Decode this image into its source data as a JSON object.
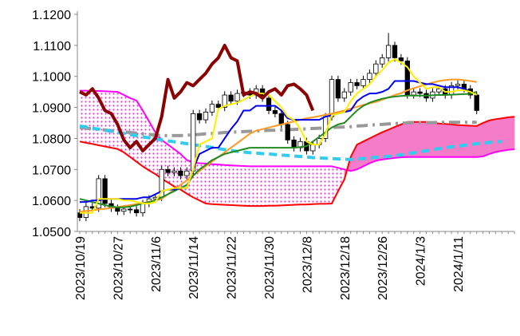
{
  "chart_data": {
    "type": "candlestick",
    "ylim": [
      1.05,
      1.12
    ],
    "yticks": [
      {
        "value": 1.05,
        "label": "1.0500"
      },
      {
        "value": 1.06,
        "label": "1.0600"
      },
      {
        "value": 1.07,
        "label": "1.0700"
      },
      {
        "value": 1.08,
        "label": "1.0800"
      },
      {
        "value": 1.09,
        "label": "1.0900"
      },
      {
        "value": 1.1,
        "label": "1.1000"
      },
      {
        "value": 1.11,
        "label": "1.1100"
      },
      {
        "value": 1.12,
        "label": "1.1200"
      }
    ],
    "categories": [
      "2023/10/19",
      null,
      null,
      null,
      null,
      null,
      "2023/10/27",
      null,
      null,
      null,
      null,
      null,
      "2023/11/6",
      null,
      null,
      null,
      null,
      null,
      "2023/11/14",
      null,
      null,
      null,
      null,
      null,
      "2023/11/22",
      null,
      null,
      null,
      null,
      null,
      "2023/11/30",
      null,
      null,
      null,
      null,
      null,
      "2023/12/8",
      null,
      null,
      null,
      null,
      null,
      "2023/12/18",
      null,
      null,
      null,
      null,
      null,
      "2023/12/26",
      null,
      null,
      null,
      null,
      null,
      "2024/1/3",
      null,
      null,
      null,
      null,
      null,
      "2024/1/11",
      null,
      null,
      null,
      null,
      null,
      null,
      null,
      null,
      null
    ],
    "candles": {
      "up_color": "#ffffff",
      "down_color": "#000000",
      "open": [
        1.056,
        1.0545,
        1.058,
        1.0575,
        1.067,
        1.059,
        1.0575,
        1.0565,
        1.0572,
        1.057,
        1.056,
        1.059,
        1.0605,
        1.061,
        1.07,
        1.069,
        1.0695,
        1.068,
        1.0695,
        1.088,
        1.086,
        1.0885,
        1.091,
        1.09,
        1.094,
        1.092,
        1.0945,
        1.095,
        1.094,
        1.096,
        1.093,
        1.089,
        1.088,
        1.0845,
        1.0795,
        1.077,
        1.079,
        1.076,
        1.078,
        1.08,
        1.087,
        1.099,
        1.093,
        1.095,
        1.098,
        1.097,
        1.099,
        1.101,
        1.104,
        1.106,
        1.11,
        1.106,
        1.105,
        1.094,
        1.095,
        1.0945,
        1.093,
        1.095,
        1.096,
        1.094,
        1.097,
        1.0975,
        1.096,
        1.094,
        null,
        null,
        null,
        null,
        null,
        null
      ],
      "high": [
        1.0572,
        1.0592,
        1.0592,
        1.0682,
        1.0682,
        1.0602,
        1.0587,
        1.0584,
        1.0584,
        1.0582,
        1.0602,
        1.0617,
        1.0622,
        1.0712,
        1.0712,
        1.0707,
        1.0707,
        1.0707,
        1.0892,
        1.0892,
        1.0897,
        1.0922,
        1.0922,
        1.0952,
        1.0952,
        1.0957,
        1.0962,
        1.0962,
        1.0972,
        1.0972,
        1.0942,
        1.0902,
        1.0892,
        1.0857,
        1.0807,
        1.0802,
        1.0802,
        1.0792,
        1.0812,
        1.0882,
        1.1002,
        1.1002,
        1.0962,
        1.0992,
        1.0992,
        1.1002,
        1.1022,
        1.1052,
        1.1072,
        1.114,
        1.1112,
        1.1072,
        1.1062,
        1.0962,
        1.0962,
        1.0957,
        1.0962,
        1.0972,
        1.0972,
        1.0982,
        1.0987,
        1.0987,
        1.0972,
        1.0952,
        null,
        null,
        null,
        null,
        null,
        null
      ],
      "low": [
        1.0533,
        1.0533,
        1.0563,
        1.0563,
        1.0578,
        1.0563,
        1.0553,
        1.0553,
        1.0558,
        1.0548,
        1.0548,
        1.0578,
        1.0593,
        1.0598,
        1.0678,
        1.0678,
        1.0668,
        1.0668,
        1.0683,
        1.0848,
        1.0848,
        1.0873,
        1.0888,
        1.0888,
        1.0908,
        1.0908,
        1.0933,
        1.0928,
        1.0928,
        1.0918,
        1.0878,
        1.0868,
        1.0833,
        1.0783,
        1.0758,
        1.0758,
        1.0748,
        1.0748,
        1.0768,
        1.0788,
        1.0858,
        1.0918,
        1.0918,
        1.0938,
        1.0958,
        1.0958,
        1.0978,
        1.0998,
        1.1028,
        1.1048,
        1.1048,
        1.1038,
        1.0928,
        1.0928,
        1.0933,
        1.0918,
        1.0918,
        1.0938,
        1.0928,
        1.0928,
        1.0958,
        1.0948,
        1.0928,
        1.0878,
        null,
        null,
        null,
        null,
        null,
        null
      ],
      "close": [
        1.0545,
        1.058,
        1.0575,
        1.067,
        1.059,
        1.0575,
        1.0565,
        1.0572,
        1.057,
        1.056,
        1.059,
        1.0605,
        1.061,
        1.07,
        1.069,
        1.0695,
        1.068,
        1.0695,
        1.088,
        1.086,
        1.0885,
        1.091,
        1.09,
        1.094,
        1.092,
        1.0945,
        1.095,
        1.094,
        1.096,
        1.093,
        1.089,
        1.088,
        1.0845,
        1.0795,
        1.077,
        1.079,
        1.076,
        1.078,
        1.08,
        1.087,
        1.099,
        1.093,
        1.095,
        1.098,
        1.097,
        1.099,
        1.101,
        1.104,
        1.106,
        1.11,
        1.106,
        1.105,
        1.094,
        1.095,
        1.0945,
        1.093,
        1.095,
        1.096,
        1.094,
        1.097,
        1.0975,
        1.096,
        1.094,
        1.089,
        null,
        null,
        null,
        null,
        null,
        null
      ]
    },
    "cloud": {
      "up_fill": "#f47cc8",
      "down_fill": "#e83ad8",
      "a": {
        "color": "#ff0000",
        "values": [
          1.079,
          1.0786,
          1.0782,
          1.0778,
          1.0774,
          1.077,
          1.0766,
          1.0755,
          1.074,
          1.0725,
          1.071,
          1.0697,
          1.0685,
          1.067,
          1.0658,
          1.0645,
          1.0635,
          1.0622,
          1.061,
          1.06,
          1.059,
          1.0588,
          1.0587,
          1.0586,
          1.0585,
          1.0584,
          1.0583,
          1.0582,
          1.0582,
          1.0582,
          1.0583,
          1.0583,
          1.0584,
          1.0585,
          1.0586,
          1.0587,
          1.0587,
          1.0588,
          1.0589,
          1.0589,
          1.059,
          1.063,
          1.0668,
          1.074,
          1.078,
          1.079,
          1.08,
          1.081,
          1.082,
          1.0828,
          1.0837,
          1.0845,
          1.0853,
          1.0853,
          1.0853,
          1.0853,
          1.085,
          1.0848,
          1.0847,
          1.0845,
          1.0843,
          1.0842,
          1.0841,
          1.084,
          1.085,
          1.0858,
          1.0862,
          1.0865,
          1.0868,
          1.087
        ]
      },
      "b": {
        "color": "#ff00ff",
        "values": [
          1.0954,
          1.0954,
          1.0953,
          1.0953,
          1.0952,
          1.0951,
          1.095,
          1.094,
          1.093,
          1.0922,
          1.089,
          1.0855,
          1.082,
          1.0795,
          1.078,
          1.0765,
          1.075,
          1.073,
          1.0722,
          1.072,
          1.0719,
          1.0717,
          1.0716,
          1.0714,
          1.0713,
          1.0712,
          1.0711,
          1.071,
          1.071,
          1.071,
          1.071,
          1.071,
          1.071,
          1.071,
          1.071,
          1.071,
          1.071,
          1.071,
          1.071,
          1.071,
          1.071,
          1.0705,
          1.07,
          1.0695,
          1.07,
          1.071,
          1.072,
          1.0728,
          1.0732,
          1.0735,
          1.0737,
          1.0739,
          1.074,
          1.074,
          1.074,
          1.074,
          1.074,
          1.074,
          1.074,
          1.074,
          1.074,
          1.074,
          1.074,
          1.074,
          1.0742,
          1.075,
          1.0756,
          1.076,
          1.0763,
          1.0765
        ]
      }
    },
    "series": [
      {
        "color": "#999999",
        "width": 4,
        "dash": "dashdot",
        "values": [
          1.0835,
          1.0833,
          1.0831,
          1.0829,
          1.0827,
          1.0825,
          1.0823,
          1.0821,
          1.0819,
          1.0817,
          1.0815,
          1.0813,
          1.0811,
          1.0809,
          1.0809,
          1.0809,
          1.0809,
          1.081,
          1.0812,
          1.0813,
          1.0815,
          1.0816,
          1.0817,
          1.0819,
          1.082,
          1.0821,
          1.0822,
          1.0823,
          1.0824,
          1.0825,
          1.0826,
          1.0826,
          1.0827,
          1.0828,
          1.0829,
          1.083,
          1.0831,
          1.0832,
          1.0833,
          1.0834,
          1.0835,
          1.0836,
          1.0837,
          1.0838,
          1.084,
          1.0841,
          1.0843,
          1.0844,
          1.0845,
          1.0847,
          1.0848,
          1.0849,
          1.085,
          1.0851,
          1.0851,
          1.0851,
          1.0851,
          1.0852,
          1.0852,
          1.0852,
          1.0852,
          1.0852,
          1.0852,
          1.0852,
          null,
          null,
          null,
          null,
          null,
          null
        ]
      },
      {
        "color": "#33ccee",
        "width": 4,
        "dash": "dashed",
        "values": [
          1.084,
          1.0837,
          1.0833,
          1.083,
          1.0826,
          1.0823,
          1.0819,
          1.0816,
          1.0812,
          1.0809,
          1.0805,
          1.0802,
          1.0798,
          1.0795,
          1.0792,
          1.0789,
          1.0786,
          1.0783,
          1.078,
          1.0777,
          1.0774,
          1.0771,
          1.0767,
          1.0764,
          1.0761,
          1.0758,
          1.0756,
          1.0754,
          1.0753,
          1.0751,
          1.075,
          1.0748,
          1.0746,
          1.0745,
          1.0743,
          1.0742,
          1.074,
          1.0738,
          1.0737,
          1.0736,
          1.0735,
          1.0734,
          1.0733,
          1.0732,
          1.0734,
          1.0735,
          1.0737,
          1.0739,
          1.074,
          1.0742,
          1.0744,
          1.0747,
          1.075,
          1.0754,
          1.0757,
          1.076,
          1.0764,
          1.0767,
          1.077,
          1.0773,
          1.0775,
          1.0778,
          1.078,
          1.0783,
          1.0785,
          1.0787,
          1.0789,
          1.079,
          null,
          null
        ]
      },
      {
        "color": "#ff9922",
        "width": 2,
        "values": [
          1.0564,
          1.0566,
          1.0568,
          1.0571,
          1.0573,
          1.0576,
          1.0579,
          1.0582,
          1.0585,
          1.0588,
          1.0592,
          1.0596,
          1.06,
          1.0605,
          1.062,
          1.0635,
          1.065,
          1.0665,
          1.068,
          1.0695,
          1.071,
          1.0725,
          1.074,
          1.0755,
          1.077,
          1.0785,
          1.08,
          1.0815,
          1.0825,
          1.083,
          1.0835,
          1.084,
          1.0845,
          1.085,
          1.0855,
          1.086,
          1.0865,
          1.0868,
          1.0872,
          1.0876,
          1.088,
          1.0885,
          1.089,
          1.0896,
          1.0902,
          1.0908,
          1.0913,
          1.0918,
          1.0925,
          1.0932,
          1.094,
          1.0946,
          1.0955,
          1.0962,
          1.0968,
          1.0974,
          1.098,
          1.0985,
          1.0988,
          1.099,
          1.099,
          1.0988,
          1.0985,
          1.0982,
          null,
          null,
          null,
          null,
          null,
          null
        ]
      },
      {
        "color": "#228b22",
        "width": 2,
        "values": [
          1.0605,
          1.06,
          1.0595,
          1.059,
          1.0585,
          1.058,
          1.0578,
          1.0578,
          1.058,
          1.0585,
          1.059,
          1.0595,
          1.06,
          1.061,
          1.062,
          1.063,
          1.064,
          1.065,
          1.068,
          1.07,
          1.0715,
          1.073,
          1.074,
          1.075,
          1.0755,
          1.076,
          1.0765,
          1.077,
          1.077,
          1.077,
          1.077,
          1.077,
          1.077,
          1.077,
          1.077,
          1.0772,
          1.0775,
          1.079,
          1.0805,
          1.082,
          1.0835,
          1.0845,
          1.085,
          1.087,
          1.089,
          1.0905,
          1.0915,
          1.0922,
          1.0928,
          1.0932,
          1.0935,
          1.0937,
          1.0938,
          1.0938,
          1.0938,
          1.0938,
          1.0939,
          1.094,
          1.094,
          1.0941,
          1.0942,
          1.0943,
          1.0944,
          1.095,
          null,
          null,
          null,
          null,
          null,
          null
        ]
      },
      {
        "color": "#0000ee",
        "width": 2,
        "values": [
          1.0595,
          1.0595,
          1.06,
          1.06,
          1.0605,
          1.0605,
          1.0605,
          1.0605,
          1.0605,
          1.0605,
          1.061,
          1.061,
          1.062,
          1.063,
          1.0635,
          1.0635,
          1.064,
          1.064,
          1.07,
          1.075,
          1.076,
          1.077,
          1.077,
          1.08,
          1.083,
          1.0855,
          1.089,
          1.089,
          1.0905,
          1.0905,
          1.0905,
          1.0905,
          1.089,
          1.0865,
          1.086,
          1.086,
          1.086,
          1.086,
          1.086,
          1.087,
          1.0875,
          1.088,
          1.0885,
          1.089,
          1.092,
          1.0935,
          1.0945,
          1.0945,
          1.095,
          1.096,
          1.0985,
          1.0985,
          1.0985,
          1.0985,
          1.098,
          1.0975,
          1.0975,
          1.097,
          1.0965,
          1.0965,
          1.0965,
          1.096,
          1.095,
          1.094,
          null,
          null,
          null,
          null,
          null,
          null
        ]
      },
      {
        "color": "#ffee00",
        "width": 2,
        "values": [
          1.056,
          1.056,
          1.056,
          1.0605,
          1.0605,
          1.0605,
          1.0605,
          1.06,
          1.06,
          1.0595,
          1.059,
          1.059,
          1.0595,
          1.063,
          1.0635,
          1.064,
          1.064,
          1.064,
          1.07,
          1.078,
          1.079,
          1.08,
          1.0895,
          1.0905,
          1.091,
          1.0915,
          1.0925,
          1.0935,
          1.0945,
          1.0945,
          1.094,
          1.092,
          1.09,
          1.087,
          1.086,
          1.083,
          1.079,
          1.078,
          1.078,
          1.0815,
          1.0875,
          1.088,
          1.0885,
          1.092,
          1.0945,
          1.096,
          1.0975,
          1.1,
          1.102,
          1.1045,
          1.1055,
          1.1045,
          1.103,
          1.1,
          1.098,
          1.096,
          1.0965,
          1.0965,
          1.095,
          1.095,
          1.0955,
          1.0955,
          1.095,
          1.094,
          null,
          null,
          null,
          null,
          null,
          null
        ]
      },
      {
        "color": "#8b0000",
        "width": 4,
        "values": [
          1.095,
          1.094,
          1.096,
          1.093,
          1.089,
          1.088,
          1.0845,
          1.0795,
          1.077,
          1.079,
          1.076,
          1.078,
          1.08,
          1.087,
          1.099,
          1.093,
          1.095,
          1.098,
          1.097,
          1.099,
          1.101,
          1.104,
          1.106,
          1.11,
          1.106,
          1.105,
          1.094,
          1.095,
          1.0945,
          1.093,
          1.095,
          1.096,
          1.094,
          1.097,
          1.0975,
          1.096,
          1.094,
          1.089,
          null,
          null,
          null,
          null,
          null,
          null,
          null,
          null,
          null,
          null,
          null,
          null,
          null,
          null,
          null,
          null,
          null,
          null,
          null,
          null,
          null,
          null,
          null,
          null,
          null,
          null,
          null,
          null,
          null,
          null,
          null,
          null
        ]
      }
    ]
  }
}
